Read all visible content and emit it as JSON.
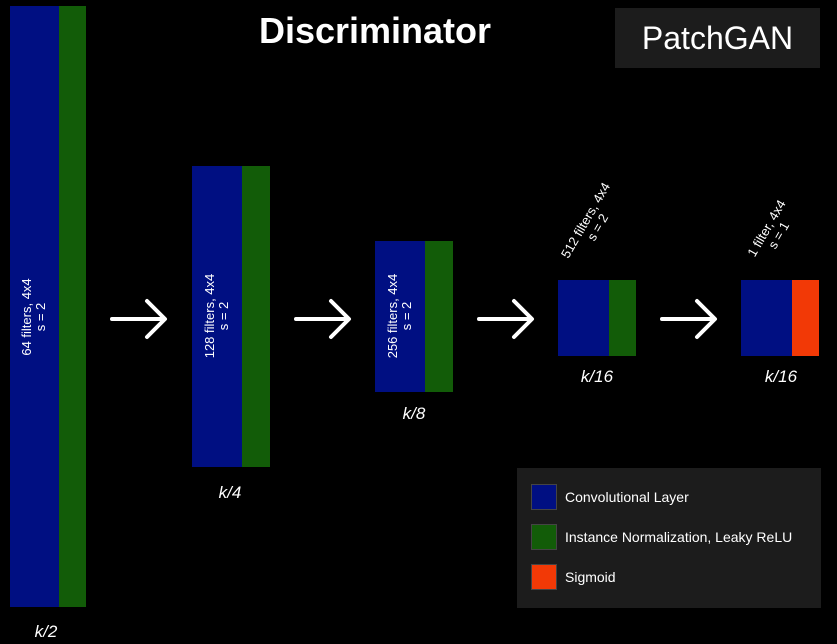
{
  "title": "Discriminator",
  "badge": "PatchGAN",
  "colors": {
    "conv": "#000f82",
    "norm": "#125c08",
    "sigmoid": "#f23906",
    "background": "#000000",
    "panel": "#1c1c1c"
  },
  "layers": [
    {
      "label": "64 filters, 4x4\ns = 2",
      "size": "k/2"
    },
    {
      "label": "128 filters, 4x4\ns = 2",
      "size": "k/4"
    },
    {
      "label": "256 filters, 4x4\ns = 2",
      "size": "k/8"
    },
    {
      "label": "512 filters, 4x4\ns = 2",
      "size": "k/16"
    },
    {
      "label": "1 filter, 4x4\ns = 1",
      "size": "k/16"
    }
  ],
  "legend": [
    {
      "label": "Convolutional Layer",
      "color_key": "conv"
    },
    {
      "label": "Instance Normalization, Leaky ReLU",
      "color_key": "norm"
    },
    {
      "label": "Sigmoid",
      "color_key": "sigmoid"
    }
  ]
}
